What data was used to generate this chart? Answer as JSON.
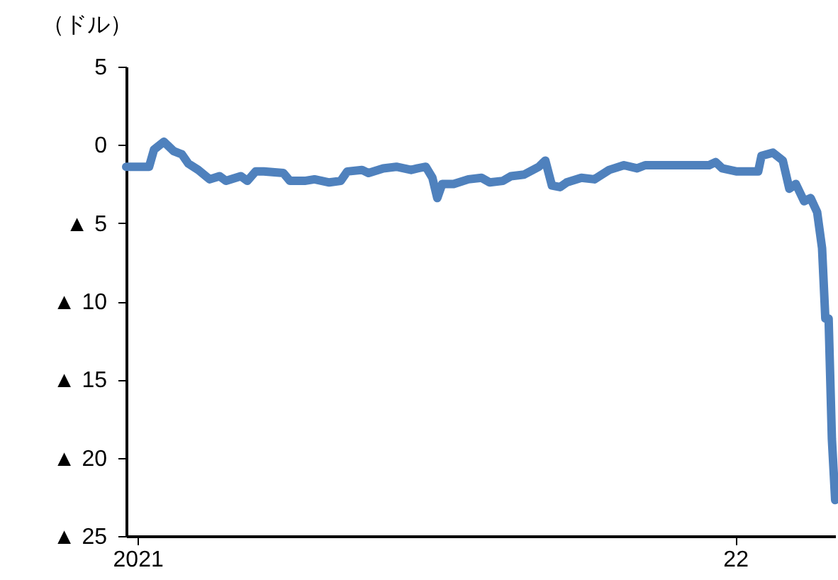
{
  "chart_data": {
    "type": "line",
    "ylabel": "（ドル）",
    "x": [
      "2020-12-25",
      "2021-01-08",
      "2021-01-11",
      "2021-01-17",
      "2021-01-23",
      "2021-01-28",
      "2021-02-01",
      "2021-02-07",
      "2021-02-14",
      "2021-02-20",
      "2021-02-24",
      "2021-03-05",
      "2021-03-09",
      "2021-03-14",
      "2021-03-19",
      "2021-03-31",
      "2021-04-04",
      "2021-04-13",
      "2021-04-19",
      "2021-04-28",
      "2021-05-05",
      "2021-05-09",
      "2021-05-18",
      "2021-05-22",
      "2021-05-31",
      "2021-06-08",
      "2021-06-17",
      "2021-06-21",
      "2021-06-26",
      "2021-06-30",
      "2021-07-03",
      "2021-07-06",
      "2021-07-13",
      "2021-07-22",
      "2021-07-30",
      "2021-08-04",
      "2021-08-12",
      "2021-08-17",
      "2021-08-25",
      "2021-09-03",
      "2021-09-07",
      "2021-09-11",
      "2021-09-16",
      "2021-09-20",
      "2021-09-29",
      "2021-10-07",
      "2021-10-16",
      "2021-10-25",
      "2021-11-02",
      "2021-11-07",
      "2021-11-15",
      "2021-12-16",
      "2021-12-20",
      "2021-12-24",
      "2022-01-02",
      "2022-01-15",
      "2022-01-17",
      "2022-01-24",
      "2022-01-30",
      "2022-02-03",
      "2022-02-07",
      "2022-02-12",
      "2022-02-16",
      "2022-02-20",
      "2022-02-23",
      "2022-02-25",
      "2022-02-27",
      "2022-03-01",
      "2022-03-03"
    ],
    "series": [
      {
        "color": "#4f81bd",
        "values": [
          -1.4,
          -1.4,
          -0.3,
          0.2,
          -0.4,
          -0.6,
          -1.2,
          -1.6,
          -2.2,
          -2.0,
          -2.3,
          -2.0,
          -2.3,
          -1.7,
          -1.7,
          -1.8,
          -2.3,
          -2.3,
          -2.2,
          -2.4,
          -2.3,
          -1.7,
          -1.6,
          -1.8,
          -1.5,
          -1.4,
          -1.6,
          -1.5,
          -1.4,
          -2.1,
          -3.4,
          -2.5,
          -2.5,
          -2.2,
          -2.1,
          -2.4,
          -2.3,
          -2.0,
          -1.9,
          -1.4,
          -1.0,
          -2.6,
          -2.7,
          -2.4,
          -2.1,
          -2.2,
          -1.6,
          -1.3,
          -1.5,
          -1.3,
          -1.3,
          -1.3,
          -1.1,
          -1.5,
          -1.7,
          -1.7,
          -0.7,
          -0.5,
          -1.0,
          -2.8,
          -2.5,
          -3.6,
          -3.4,
          -4.3,
          -6.6,
          -11.1,
          -11.1,
          -18.8,
          -22.7
        ]
      }
    ],
    "xlim": [
      "2020-12-25",
      "2022-03-03"
    ],
    "xticks": [
      {
        "value": "2021-01-01",
        "label": "2021"
      },
      {
        "value": "2022-01-01",
        "label": "22"
      }
    ],
    "ylim": [
      -25,
      5
    ],
    "yticks": [
      5,
      0,
      {
        "value": -5,
        "label": "▲ 5"
      },
      {
        "value": -10,
        "label": "▲ 10"
      },
      {
        "value": -15,
        "label": "▲ 15"
      },
      {
        "value": -20,
        "label": "▲ 20"
      },
      {
        "value": -25,
        "label": "▲ 25"
      }
    ],
    "grid": false,
    "marker": "none",
    "line_style": "solid"
  }
}
